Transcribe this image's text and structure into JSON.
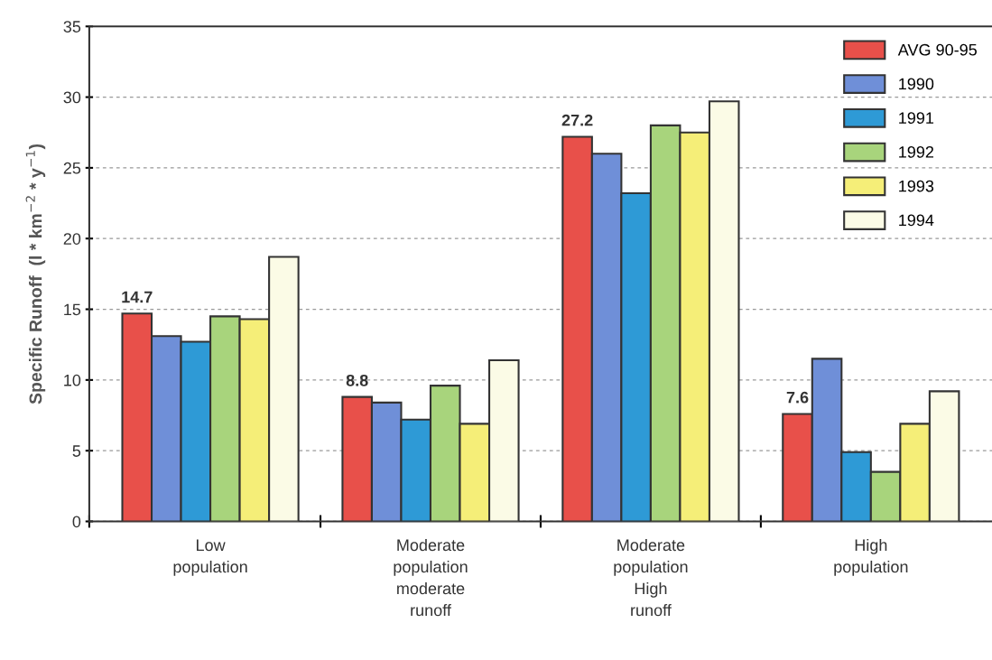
{
  "chart_data": {
    "type": "bar",
    "ylabel": "Specific Runoff  (l * km$^{−2}$ * y$^{−1}$)",
    "categories": [
      "Low\npopulation",
      "Moderate\npopulation\nmoderate\nrunoff",
      "Moderate\npopulation\nHigh\nrunoff",
      "High\npopulation"
    ],
    "series": [
      {
        "name": "AVG 90-95",
        "color": "#e8504a",
        "values": [
          14.7,
          8.8,
          27.2,
          7.6
        ],
        "value_labels": [
          "14.7",
          "8.8",
          "27.2",
          "7.6"
        ]
      },
      {
        "name": "1990",
        "color": "#6f8fd8",
        "values": [
          13.1,
          8.4,
          26.0,
          11.5
        ]
      },
      {
        "name": "1991",
        "color": "#2e9ad6",
        "values": [
          12.7,
          7.2,
          23.2,
          4.9
        ]
      },
      {
        "name": "1992",
        "color": "#a8d47c",
        "values": [
          14.5,
          9.6,
          28.0,
          3.5
        ]
      },
      {
        "name": "1993",
        "color": "#f5ee78",
        "values": [
          14.3,
          6.9,
          27.5,
          6.9
        ]
      },
      {
        "name": "1994",
        "color": "#fbfbe6",
        "values": [
          18.7,
          11.4,
          29.7,
          9.2
        ]
      }
    ],
    "ylim": [
      0,
      35
    ],
    "yticks": [
      0,
      5,
      10,
      15,
      20,
      25,
      30,
      35
    ],
    "grid": "y",
    "legend": "top right"
  }
}
